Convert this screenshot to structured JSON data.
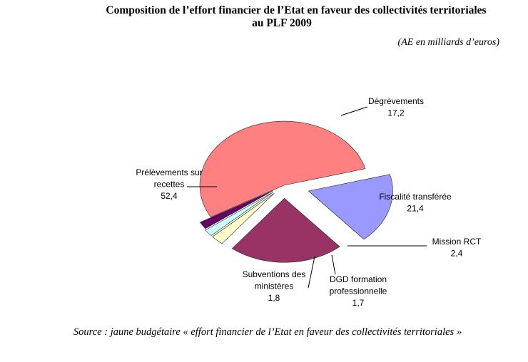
{
  "title_line1": "Composition de l’effort financier de l’Etat en faveur des collectivités territoriales",
  "title_line2": "au PLF 2009",
  "units": "(AE en milliards d’euros)",
  "source": "Source : jaune budgétaire « effort financier de l’Etat en faveur des collectivités territoriales »",
  "chart_data": {
    "type": "pie",
    "title": "Composition de l’effort financier de l’Etat en faveur des collectivités territoriales au PLF 2009",
    "unit": "(AE en milliards d’euros)",
    "slices": [
      {
        "name": "Dégrèvements",
        "label_lines": [
          "Dégrèvements"
        ],
        "value_text": "17,2",
        "value": 17.2,
        "color": "#9999ff",
        "exploded": true
      },
      {
        "name": "Fiscalité transférée",
        "label_lines": [
          "Fiscalité transférée"
        ],
        "value_text": "21,4",
        "value": 21.4,
        "color": "#993366",
        "exploded": true
      },
      {
        "name": "Mission RCT",
        "label_lines": [
          "Mission RCT"
        ],
        "value_text": "2,4",
        "value": 2.4,
        "color": "#ffffcc",
        "exploded": true
      },
      {
        "name": "DGD formation professionnelle",
        "label_lines": [
          "DGD formation",
          "professionnelle"
        ],
        "value_text": "1,7",
        "value": 1.7,
        "color": "#ccffff",
        "exploded": true
      },
      {
        "name": "Subventions des ministères",
        "label_lines": [
          "Subventions des",
          "ministères"
        ],
        "value_text": "1,8",
        "value": 1.8,
        "color": "#660066",
        "exploded": true
      },
      {
        "name": "Prélèvements sur recettes",
        "label_lines": [
          "Prélèvements sur",
          "recettes"
        ],
        "value_text": "52,4",
        "value": 52.4,
        "color": "#ff8080",
        "exploded": false
      }
    ]
  }
}
